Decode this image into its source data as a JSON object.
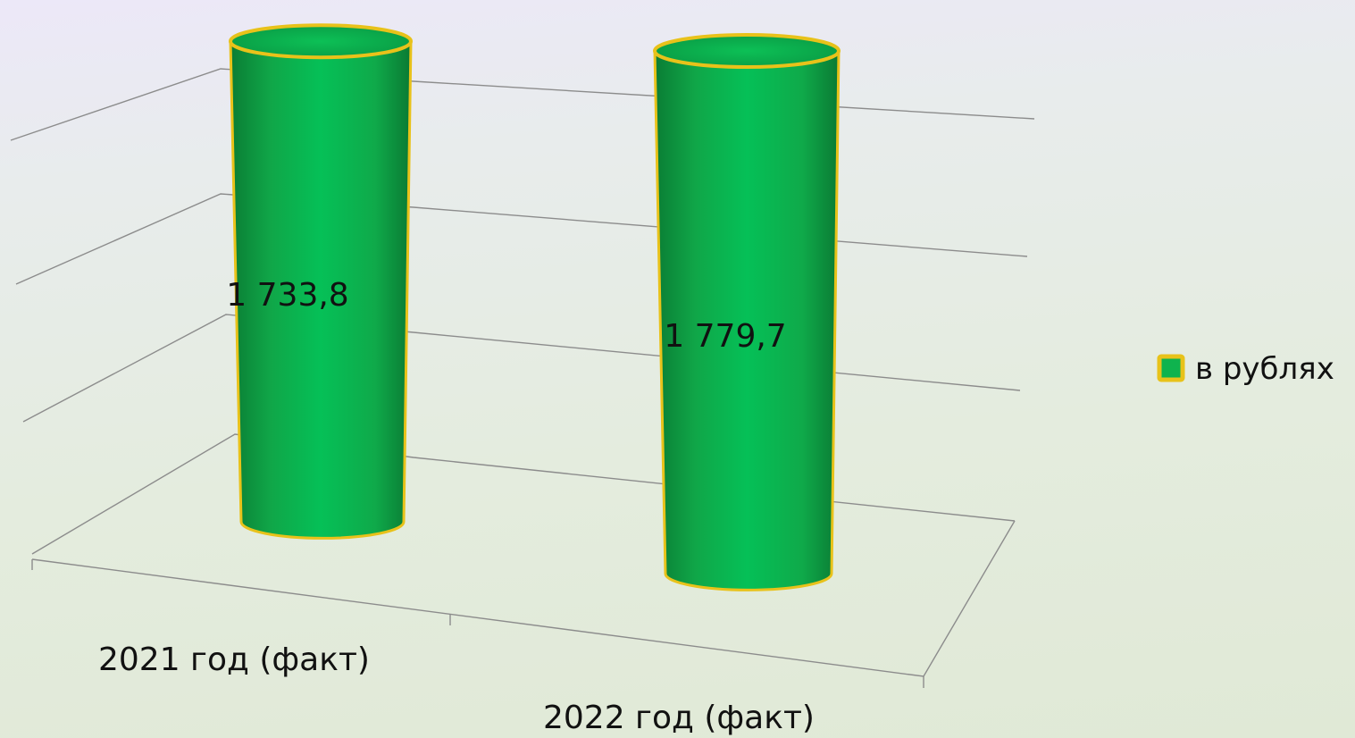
{
  "chart_data": {
    "type": "bar",
    "style": "3d-cylinder",
    "categories": [
      "2021 год (факт)",
      "2022 год (факт)"
    ],
    "series": [
      {
        "name": "в рублях",
        "values": [
          1733.8,
          1779.7
        ],
        "color": "#0fb34e",
        "outline": "#e8c21a"
      }
    ],
    "data_labels": [
      "1 733,8",
      "1 779,7"
    ],
    "legend_position": "right",
    "grid": true,
    "y_axis_labels_visible": false
  }
}
